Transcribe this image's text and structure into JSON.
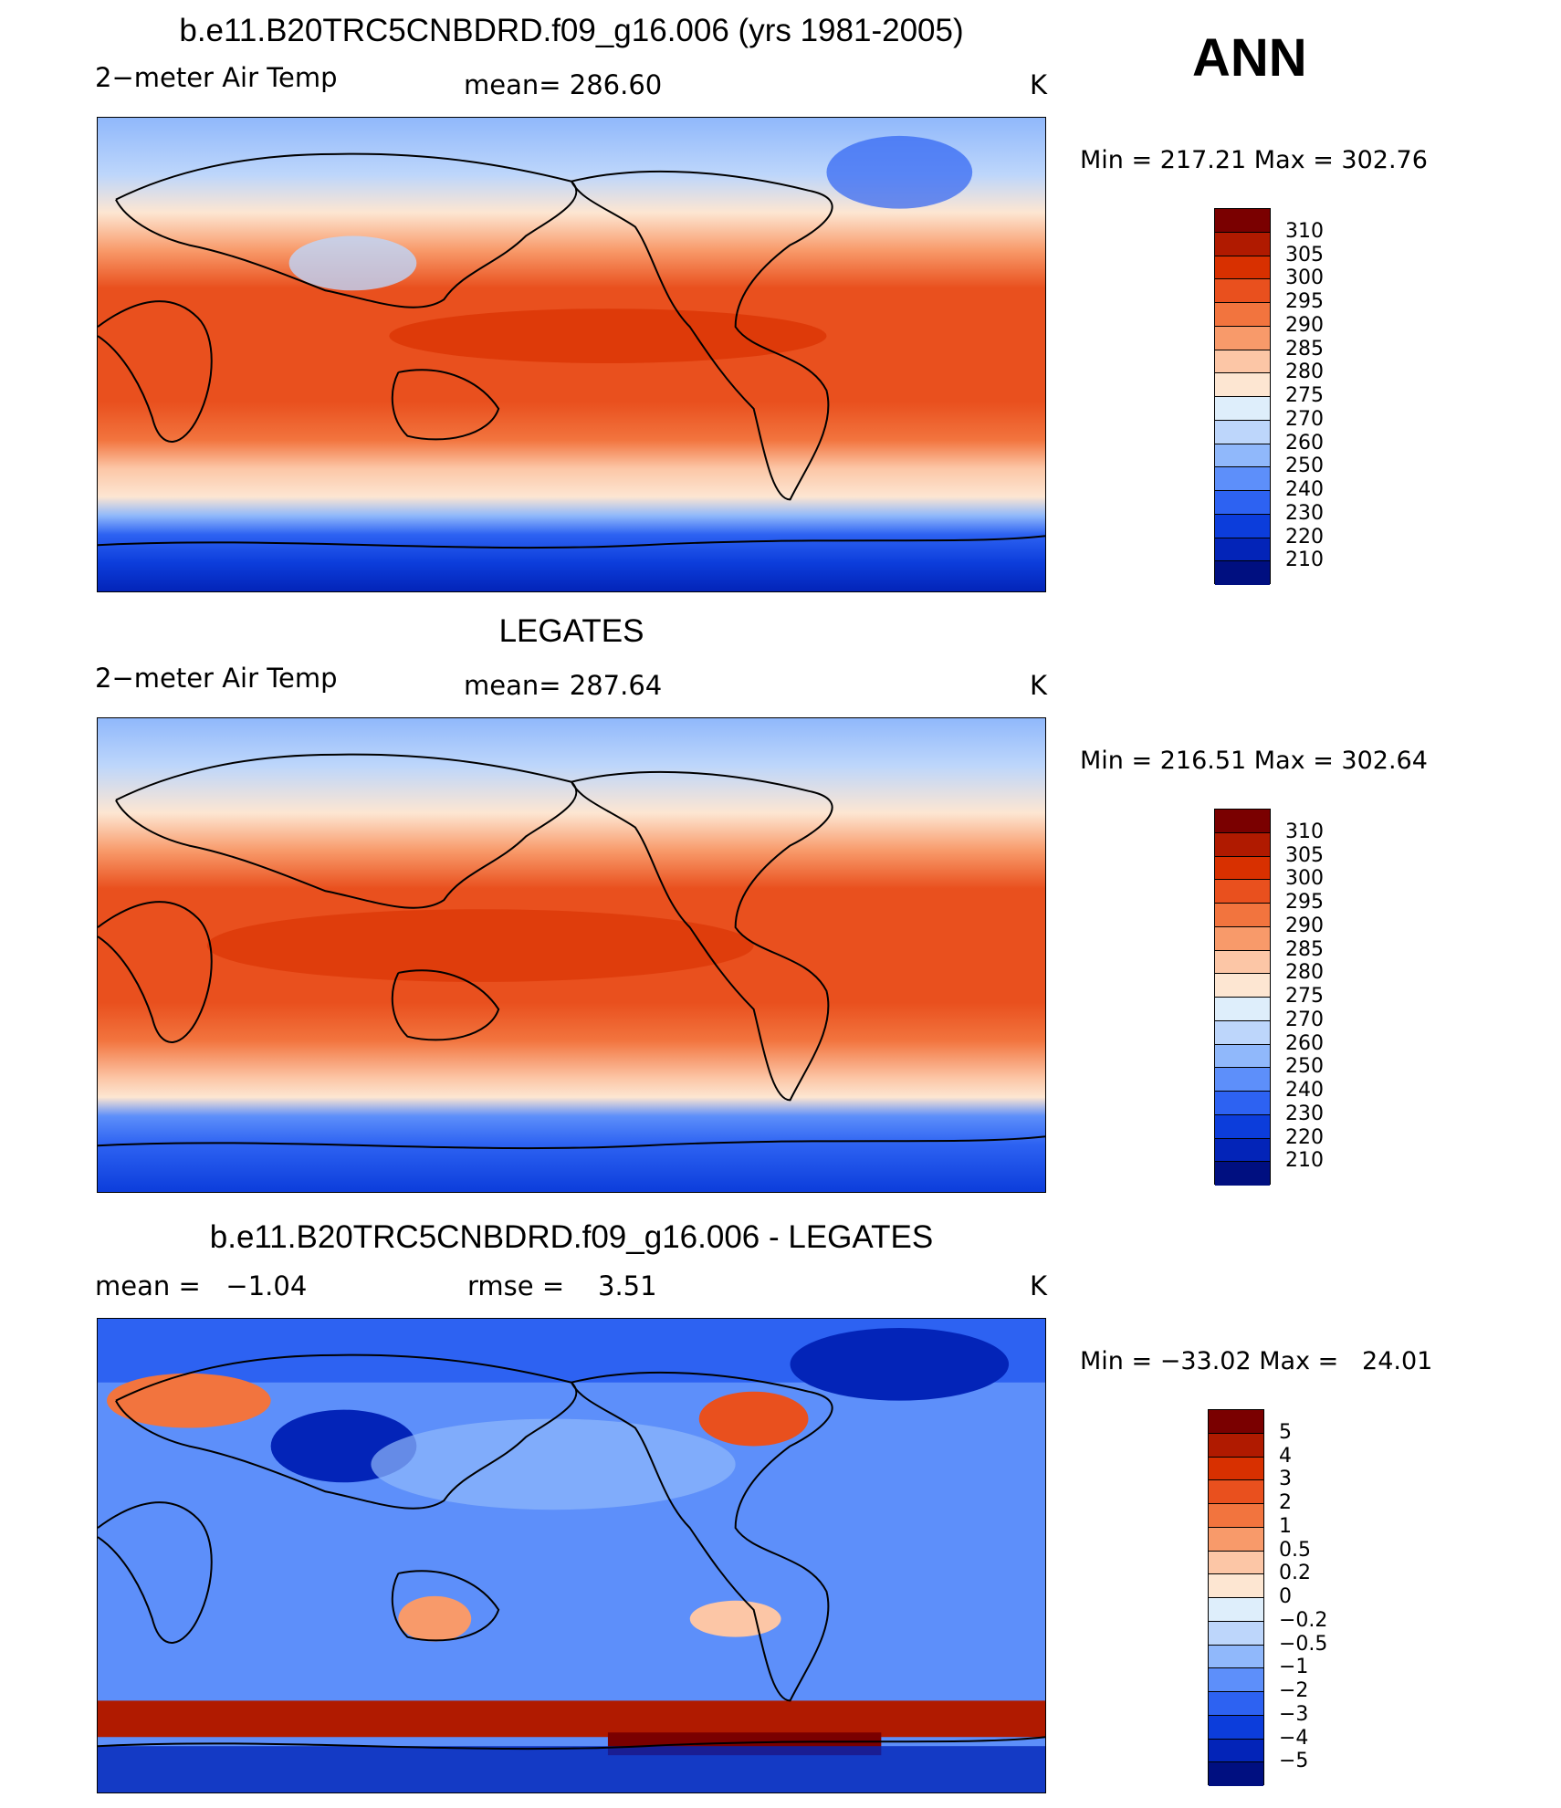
{
  "season": "ANN",
  "colors": {
    "temp_palette": [
      "#7a0000",
      "#b01a00",
      "#d83000",
      "#e9501e",
      "#f2743e",
      "#f89a6a",
      "#fcc6a6",
      "#fde6d2",
      "#deeefb",
      "#bdd6fb",
      "#90b8fb",
      "#5d8ffa",
      "#2d62f2",
      "#0c3ddb",
      "#0324b8",
      "#000f80"
    ],
    "diff_palette": [
      "#7a0000",
      "#b01a00",
      "#d83000",
      "#e9501e",
      "#f2743e",
      "#f89a6a",
      "#fcc6a6",
      "#fde6d2",
      "#deeefb",
      "#bdd6fb",
      "#90b8fb",
      "#5d8ffa",
      "#2d62f2",
      "#0c3ddb",
      "#0324b8",
      "#000f80"
    ]
  },
  "chart_data": [
    {
      "type": "heatmap",
      "title": "b.e11.B20TRC5CNBDRD.f09_g16.006 (yrs 1981-2005)",
      "variable": "2−meter Air Temp",
      "stat_label": "mean=",
      "stat_value": "286.60",
      "units": "K",
      "min_label": "Min",
      "min_value": "217.21",
      "max_label": "Max",
      "max_value": "302.76",
      "colorbar_ticks": [
        "310",
        "305",
        "300",
        "295",
        "290",
        "285",
        "280",
        "275",
        "270",
        "260",
        "250",
        "240",
        "230",
        "220",
        "210"
      ]
    },
    {
      "type": "heatmap",
      "title": "LEGATES",
      "variable": "2−meter Air Temp",
      "stat_label": "mean=",
      "stat_value": "287.64",
      "units": "K",
      "min_label": "Min",
      "min_value": "216.51",
      "max_label": "Max",
      "max_value": "302.64",
      "colorbar_ticks": [
        "310",
        "305",
        "300",
        "295",
        "290",
        "285",
        "280",
        "275",
        "270",
        "260",
        "250",
        "240",
        "230",
        "220",
        "210"
      ]
    },
    {
      "type": "heatmap",
      "title": "b.e11.B20TRC5CNBDRD.f09_g16.006 - LEGATES",
      "stat_label": "mean =",
      "stat_value": "−1.04",
      "stat2_label": "rmse =",
      "stat2_value": "3.51",
      "units": "K",
      "min_label": "Min",
      "min_value": "−33.02",
      "max_label": "Max",
      "max_value": "24.01",
      "colorbar_ticks": [
        "5",
        "4",
        "3",
        "2",
        "1",
        "0.5",
        "0.2",
        "0",
        "−0.2",
        "−0.5",
        "−1",
        "−2",
        "−3",
        "−4",
        "−5"
      ]
    }
  ]
}
